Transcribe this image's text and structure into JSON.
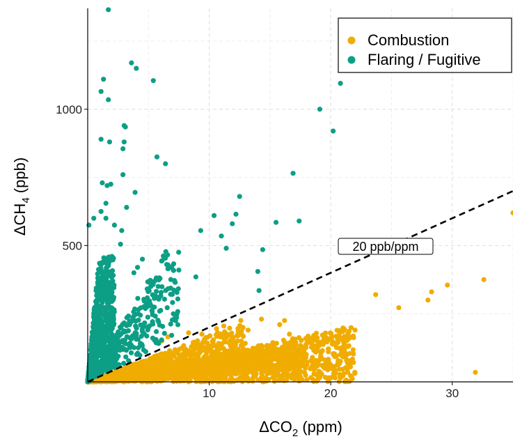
{
  "chart_data": {
    "type": "scatter",
    "title": "",
    "xlabel": {
      "prefix": "ΔCO",
      "sub": "2",
      "suffix": " (ppm)"
    },
    "ylabel": {
      "prefix": "ΔCH",
      "sub": "4",
      "suffix": " (ppb)"
    },
    "xlim": [
      0,
      35
    ],
    "ylim": [
      0,
      1370
    ],
    "xticks": [
      10,
      20,
      30
    ],
    "yticks": [
      500,
      1000
    ],
    "grid": true,
    "legend_position": "top-right",
    "reference_line": {
      "slope_ppb_per_ppm": 20,
      "style": "dashed",
      "label": "20 ppb/ppm",
      "label_at": [
        24.5,
        500
      ]
    },
    "series": [
      {
        "name": "Combustion",
        "color": "#F0AC00",
        "points": [
          [
            35.0,
            620
          ],
          [
            35.2,
            465
          ],
          [
            32.6,
            375
          ],
          [
            29.6,
            355
          ],
          [
            28.3,
            330
          ],
          [
            28.0,
            300
          ],
          [
            25.6,
            272
          ],
          [
            23.7,
            320
          ],
          [
            31.9,
            35
          ],
          [
            20.8,
            15
          ],
          [
            21.5,
            185
          ],
          [
            22.0,
            190
          ],
          [
            16.2,
            225
          ],
          [
            15.8,
            210
          ],
          [
            14.3,
            230
          ],
          [
            12.6,
            225
          ],
          [
            11.2,
            205
          ],
          [
            10.6,
            195
          ],
          [
            13.2,
            190
          ],
          [
            9.4,
            175
          ],
          [
            8.3,
            180
          ],
          [
            16.6,
            175
          ],
          [
            6.6,
            165
          ],
          [
            6.1,
            150
          ],
          [
            17.0,
            40
          ],
          [
            20.0,
            50
          ],
          [
            19.4,
            55
          ],
          [
            18.5,
            60
          ],
          [
            15.4,
            20
          ]
        ],
        "bands": [
          {
            "x_start": 0,
            "x_end": 22,
            "y_low_slope": 0,
            "y_high_slope": 9.5,
            "n": 1500
          },
          {
            "x_start": 2,
            "x_end": 18,
            "y_low_slope": 2.5,
            "y_high_slope": 8,
            "n": 700
          },
          {
            "x_start": 0,
            "x_end": 13,
            "y_low_slope": 5,
            "y_high_slope": 17,
            "n": 700
          }
        ]
      },
      {
        "name": "Flaring / Fugitive",
        "color": "#0D9E86",
        "points": [
          [
            1.7,
            1365
          ],
          [
            3.6,
            1170
          ],
          [
            4.0,
            1150
          ],
          [
            5.4,
            1105
          ],
          [
            1.3,
            1110
          ],
          [
            1.1,
            1065
          ],
          [
            1.7,
            1035
          ],
          [
            3.0,
            940
          ],
          [
            3.1,
            935
          ],
          [
            1.1,
            890
          ],
          [
            1.8,
            880
          ],
          [
            3.0,
            880
          ],
          [
            2.9,
            855
          ],
          [
            5.7,
            825
          ],
          [
            6.4,
            800
          ],
          [
            2.9,
            760
          ],
          [
            1.2,
            730
          ],
          [
            1.6,
            720
          ],
          [
            1.9,
            725
          ],
          [
            3.9,
            695
          ],
          [
            3.2,
            640
          ],
          [
            1.5,
            655
          ],
          [
            1.1,
            625
          ],
          [
            1.5,
            600
          ],
          [
            2.2,
            575
          ],
          [
            2.8,
            555
          ],
          [
            19.1,
            1000
          ],
          [
            20.2,
            920
          ],
          [
            20.8,
            1095
          ],
          [
            16.9,
            765
          ],
          [
            12.5,
            680
          ],
          [
            10.4,
            610
          ],
          [
            12.2,
            615
          ],
          [
            11.9,
            580
          ],
          [
            11.0,
            535
          ],
          [
            9.3,
            555
          ],
          [
            11.4,
            490
          ],
          [
            15.5,
            585
          ],
          [
            17.4,
            590
          ],
          [
            14.4,
            485
          ],
          [
            14.0,
            405
          ],
          [
            14.1,
            335
          ],
          [
            8.9,
            385
          ],
          [
            7.5,
            410
          ],
          [
            7.2,
            365
          ],
          [
            6.6,
            415
          ],
          [
            0.1,
            575
          ],
          [
            0.5,
            600
          ],
          [
            5.8,
            350
          ],
          [
            4.5,
            450
          ],
          [
            4.1,
            420
          ],
          [
            3.8,
            400
          ],
          [
            2.0,
            460
          ],
          [
            2.7,
            505
          ]
        ],
        "bands": [
          {
            "x_start": 0,
            "x_end": 2.2,
            "y_low_slope": 25,
            "y_high_slope": 500,
            "y_cap": 460,
            "n": 700
          },
          {
            "x_start": 1.5,
            "x_end": 7.5,
            "y_low_slope": 22,
            "y_high_slope": 75,
            "y_cap": 480,
            "n": 260
          }
        ]
      }
    ]
  }
}
